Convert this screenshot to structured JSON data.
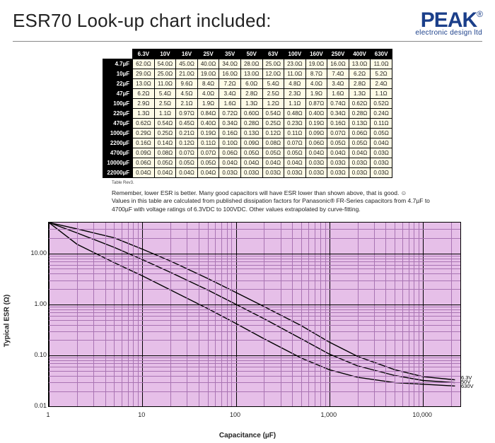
{
  "page_title": "ESR70 Look-up chart included:",
  "logo": {
    "text": "PEAK",
    "reg": "®",
    "sub": "electronic design ltd",
    "color": "#1b3f8a"
  },
  "table": {
    "voltages": [
      "6.3V",
      "10V",
      "16V",
      "25V",
      "35V",
      "50V",
      "63V",
      "100V",
      "160V",
      "250V",
      "400V",
      "630V"
    ],
    "rows": [
      {
        "cap": "4.7µF",
        "vals": [
          "62.0Ω",
          "54.0Ω",
          "45.0Ω",
          "40.0Ω",
          "34.0Ω",
          "28.0Ω",
          "25.0Ω",
          "23.0Ω",
          "19.0Ω",
          "16.0Ω",
          "13.0Ω",
          "11.0Ω"
        ]
      },
      {
        "cap": "10µF",
        "vals": [
          "29.0Ω",
          "25.0Ω",
          "21.0Ω",
          "19.0Ω",
          "16.0Ω",
          "13.0Ω",
          "12.0Ω",
          "11.0Ω",
          "8.7Ω",
          "7.4Ω",
          "6.2Ω",
          "5.2Ω"
        ]
      },
      {
        "cap": "22µF",
        "vals": [
          "13.0Ω",
          "11.0Ω",
          "9.6Ω",
          "8.4Ω",
          "7.2Ω",
          "6.0Ω",
          "5.4Ω",
          "4.8Ω",
          "4.0Ω",
          "3.4Ω",
          "2.8Ω",
          "2.4Ω"
        ]
      },
      {
        "cap": "47µF",
        "vals": [
          "6.2Ω",
          "5.4Ω",
          "4.5Ω",
          "4.0Ω",
          "3.4Ω",
          "2.8Ω",
          "2.5Ω",
          "2.3Ω",
          "1.9Ω",
          "1.6Ω",
          "1.3Ω",
          "1.1Ω"
        ]
      },
      {
        "cap": "100µF",
        "vals": [
          "2.9Ω",
          "2.5Ω",
          "2.1Ω",
          "1.9Ω",
          "1.6Ω",
          "1.3Ω",
          "1.2Ω",
          "1.1Ω",
          "0.87Ω",
          "0.74Ω",
          "0.62Ω",
          "0.52Ω"
        ]
      },
      {
        "cap": "220µF",
        "vals": [
          "1.3Ω",
          "1.1Ω",
          "0.97Ω",
          "0.84Ω",
          "0.72Ω",
          "0.60Ω",
          "0.54Ω",
          "0.48Ω",
          "0.40Ω",
          "0.34Ω",
          "0.28Ω",
          "0.24Ω"
        ]
      },
      {
        "cap": "470µF",
        "vals": [
          "0.62Ω",
          "0.54Ω",
          "0.45Ω",
          "0.40Ω",
          "0.34Ω",
          "0.28Ω",
          "0.25Ω",
          "0.23Ω",
          "0.19Ω",
          "0.16Ω",
          "0.13Ω",
          "0.11Ω"
        ]
      },
      {
        "cap": "1000µF",
        "vals": [
          "0.29Ω",
          "0.25Ω",
          "0.21Ω",
          "0.19Ω",
          "0.16Ω",
          "0.13Ω",
          "0.12Ω",
          "0.11Ω",
          "0.09Ω",
          "0.07Ω",
          "0.06Ω",
          "0.05Ω"
        ]
      },
      {
        "cap": "2200µF",
        "vals": [
          "0.16Ω",
          "0.14Ω",
          "0.12Ω",
          "0.11Ω",
          "0.10Ω",
          "0.09Ω",
          "0.08Ω",
          "0.07Ω",
          "0.06Ω",
          "0.05Ω",
          "0.05Ω",
          "0.04Ω"
        ]
      },
      {
        "cap": "4700µF",
        "vals": [
          "0.09Ω",
          "0.08Ω",
          "0.07Ω",
          "0.07Ω",
          "0.06Ω",
          "0.05Ω",
          "0.05Ω",
          "0.05Ω",
          "0.04Ω",
          "0.04Ω",
          "0.04Ω",
          "0.03Ω"
        ]
      },
      {
        "cap": "10000µF",
        "vals": [
          "0.06Ω",
          "0.05Ω",
          "0.05Ω",
          "0.05Ω",
          "0.04Ω",
          "0.04Ω",
          "0.04Ω",
          "0.04Ω",
          "0.03Ω",
          "0.03Ω",
          "0.03Ω",
          "0.03Ω"
        ]
      },
      {
        "cap": "22000µF",
        "vals": [
          "0.04Ω",
          "0.04Ω",
          "0.04Ω",
          "0.04Ω",
          "0.03Ω",
          "0.03Ω",
          "0.03Ω",
          "0.03Ω",
          "0.03Ω",
          "0.03Ω",
          "0.03Ω",
          "0.03Ω"
        ]
      }
    ],
    "cell_bg": "#fefbe6",
    "footnote": "Table Rev3."
  },
  "notes": {
    "l1": "Remember, lower ESR is better. Many good capacitors will have ESR lower than shown above, that is good. ☺",
    "l2": "Values in this table are calculated from published dissipation factors for Panasonic® FR-Series capacitors from 4.7µF to 4700µF with voltage ratings of 6.3VDC to 100VDC. Other values extrapolated by curve-fitting."
  },
  "chart": {
    "type": "log-log-line",
    "background": "#e6bfe8",
    "grid_minor_color": "#a974b3",
    "grid_major_color": "#000000",
    "xlabel": "Capacitance (µF)",
    "ylabel": "Typical ESR (Ω)",
    "x_range_log10": [
      0,
      4.4
    ],
    "y_range_log10": [
      -2,
      1.6
    ],
    "x_ticks": [
      {
        "v": 1,
        "label": "1"
      },
      {
        "v": 10,
        "label": "10"
      },
      {
        "v": 100,
        "label": "100"
      },
      {
        "v": 1000,
        "label": "1,000"
      },
      {
        "v": 10000,
        "label": "10,000"
      }
    ],
    "y_ticks": [
      {
        "v": 0.01,
        "label": "0.01"
      },
      {
        "v": 0.1,
        "label": "0.10"
      },
      {
        "v": 1.0,
        "label": "1.00"
      },
      {
        "v": 10.0,
        "label": "10.00"
      }
    ],
    "series": [
      {
        "name": "6.3V",
        "label_y": 0.036,
        "pts": [
          [
            1,
            40
          ],
          [
            2,
            30
          ],
          [
            5,
            20
          ],
          [
            10,
            12
          ],
          [
            20,
            7
          ],
          [
            50,
            3.2
          ],
          [
            100,
            1.7
          ],
          [
            200,
            0.9
          ],
          [
            500,
            0.38
          ],
          [
            1000,
            0.18
          ],
          [
            2000,
            0.095
          ],
          [
            5000,
            0.052
          ],
          [
            10000,
            0.038
          ],
          [
            22000,
            0.033
          ]
        ]
      },
      {
        "name": "50V",
        "label_y": 0.03,
        "pts": [
          [
            1,
            40
          ],
          [
            2,
            25
          ],
          [
            5,
            13
          ],
          [
            10,
            7.5
          ],
          [
            20,
            4.2
          ],
          [
            50,
            1.9
          ],
          [
            100,
            1.0
          ],
          [
            200,
            0.52
          ],
          [
            500,
            0.21
          ],
          [
            1000,
            0.105
          ],
          [
            2000,
            0.062
          ],
          [
            5000,
            0.04
          ],
          [
            10000,
            0.032
          ],
          [
            22000,
            0.029
          ]
        ]
      },
      {
        "name": "630V",
        "label_y": 0.025,
        "pts": [
          [
            1,
            40
          ],
          [
            2,
            15
          ],
          [
            5,
            6.5
          ],
          [
            10,
            3.6
          ],
          [
            20,
            1.9
          ],
          [
            50,
            0.82
          ],
          [
            100,
            0.42
          ],
          [
            200,
            0.21
          ],
          [
            500,
            0.088
          ],
          [
            1000,
            0.052
          ],
          [
            2000,
            0.037
          ],
          [
            5000,
            0.029
          ],
          [
            10000,
            0.027
          ],
          [
            22000,
            0.025
          ]
        ]
      }
    ],
    "line_color": "#000000",
    "line_width": 1.4
  }
}
